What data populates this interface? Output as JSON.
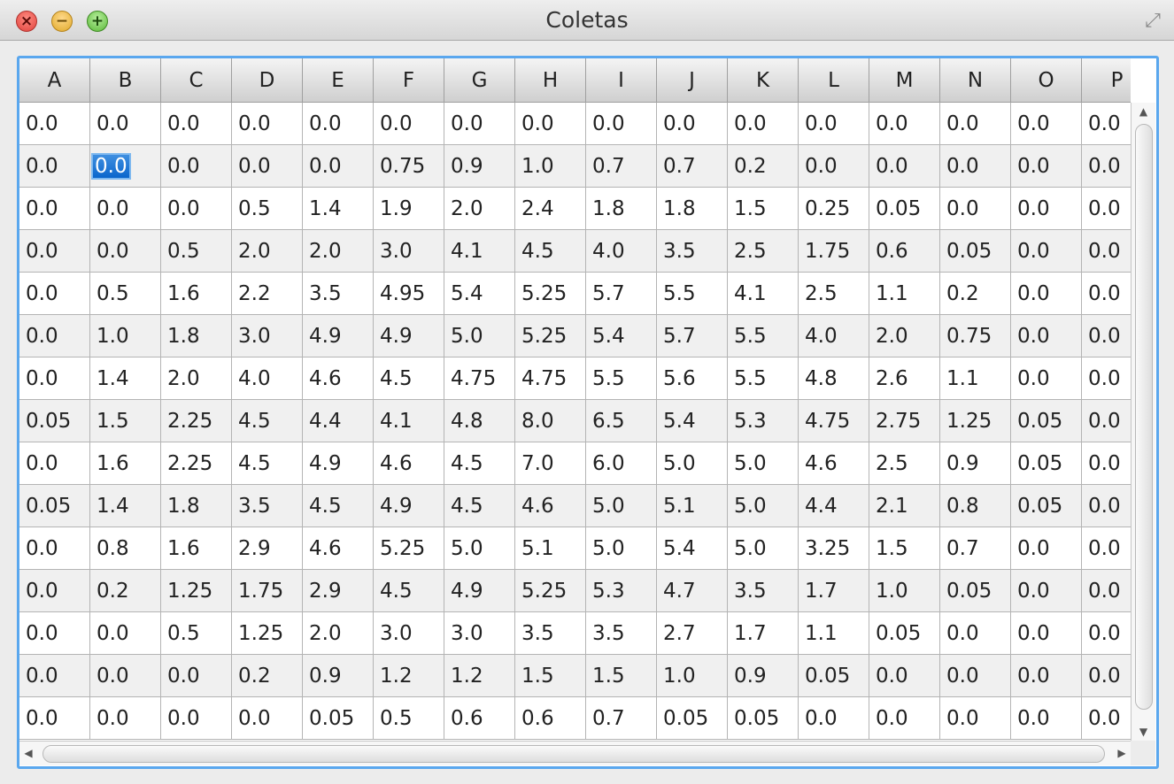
{
  "window": {
    "title": "Coletas",
    "close_icon": "close-icon",
    "minimize_icon": "minimize-icon",
    "zoom_icon": "zoom-icon",
    "fullscreen_icon": "fullscreen-icon"
  },
  "table": {
    "columns": [
      "A",
      "B",
      "C",
      "D",
      "E",
      "F",
      "G",
      "H",
      "I",
      "J",
      "K",
      "L",
      "M",
      "N",
      "O",
      "P"
    ],
    "selected_cell": {
      "row": 1,
      "col": 1
    },
    "rows": [
      [
        "0.0",
        "0.0",
        "0.0",
        "0.0",
        "0.0",
        "0.0",
        "0.0",
        "0.0",
        "0.0",
        "0.0",
        "0.0",
        "0.0",
        "0.0",
        "0.0",
        "0.0",
        "0.0"
      ],
      [
        "0.0",
        "0.0",
        "0.0",
        "0.0",
        "0.0",
        "0.75",
        "0.9",
        "1.0",
        "0.7",
        "0.7",
        "0.2",
        "0.0",
        "0.0",
        "0.0",
        "0.0",
        "0.0"
      ],
      [
        "0.0",
        "0.0",
        "0.0",
        "0.5",
        "1.4",
        "1.9",
        "2.0",
        "2.4",
        "1.8",
        "1.8",
        "1.5",
        "0.25",
        "0.05",
        "0.0",
        "0.0",
        "0.0"
      ],
      [
        "0.0",
        "0.0",
        "0.5",
        "2.0",
        "2.0",
        "3.0",
        "4.1",
        "4.5",
        "4.0",
        "3.5",
        "2.5",
        "1.75",
        "0.6",
        "0.05",
        "0.0",
        "0.0"
      ],
      [
        "0.0",
        "0.5",
        "1.6",
        "2.2",
        "3.5",
        "4.95",
        "5.4",
        "5.25",
        "5.7",
        "5.5",
        "4.1",
        "2.5",
        "1.1",
        "0.2",
        "0.0",
        "0.0"
      ],
      [
        "0.0",
        "1.0",
        "1.8",
        "3.0",
        "4.9",
        "4.9",
        "5.0",
        "5.25",
        "5.4",
        "5.7",
        "5.5",
        "4.0",
        "2.0",
        "0.75",
        "0.0",
        "0.0"
      ],
      [
        "0.0",
        "1.4",
        "2.0",
        "4.0",
        "4.6",
        "4.5",
        "4.75",
        "4.75",
        "5.5",
        "5.6",
        "5.5",
        "4.8",
        "2.6",
        "1.1",
        "0.0",
        "0.0"
      ],
      [
        "0.05",
        "1.5",
        "2.25",
        "4.5",
        "4.4",
        "4.1",
        "4.8",
        "8.0",
        "6.5",
        "5.4",
        "5.3",
        "4.75",
        "2.75",
        "1.25",
        "0.05",
        "0.0"
      ],
      [
        "0.0",
        "1.6",
        "2.25",
        "4.5",
        "4.9",
        "4.6",
        "4.5",
        "7.0",
        "6.0",
        "5.0",
        "5.0",
        "4.6",
        "2.5",
        "0.9",
        "0.05",
        "0.0"
      ],
      [
        "0.05",
        "1.4",
        "1.8",
        "3.5",
        "4.5",
        "4.9",
        "4.5",
        "4.6",
        "5.0",
        "5.1",
        "5.0",
        "4.4",
        "2.1",
        "0.8",
        "0.05",
        "0.0"
      ],
      [
        "0.0",
        "0.8",
        "1.6",
        "2.9",
        "4.6",
        "5.25",
        "5.0",
        "5.1",
        "5.0",
        "5.4",
        "5.0",
        "3.25",
        "1.5",
        "0.7",
        "0.0",
        "0.0"
      ],
      [
        "0.0",
        "0.2",
        "1.25",
        "1.75",
        "2.9",
        "4.5",
        "4.9",
        "5.25",
        "5.3",
        "4.7",
        "3.5",
        "1.7",
        "1.0",
        "0.05",
        "0.0",
        "0.0"
      ],
      [
        "0.0",
        "0.0",
        "0.5",
        "1.25",
        "2.0",
        "3.0",
        "3.0",
        "3.5",
        "3.5",
        "2.7",
        "1.7",
        "1.1",
        "0.05",
        "0.0",
        "0.0",
        "0.0"
      ],
      [
        "0.0",
        "0.0",
        "0.0",
        "0.2",
        "0.9",
        "1.2",
        "1.2",
        "1.5",
        "1.5",
        "1.0",
        "0.9",
        "0.05",
        "0.0",
        "0.0",
        "0.0",
        "0.0"
      ],
      [
        "0.0",
        "0.0",
        "0.0",
        "0.0",
        "0.05",
        "0.5",
        "0.6",
        "0.6",
        "0.7",
        "0.05",
        "0.05",
        "0.0",
        "0.0",
        "0.0",
        "0.0",
        "0.0"
      ]
    ]
  },
  "scrollbars": {
    "up_icon": "scroll-up-icon",
    "down_icon": "scroll-down-icon",
    "left_icon": "scroll-left-icon",
    "right_icon": "scroll-right-icon"
  }
}
